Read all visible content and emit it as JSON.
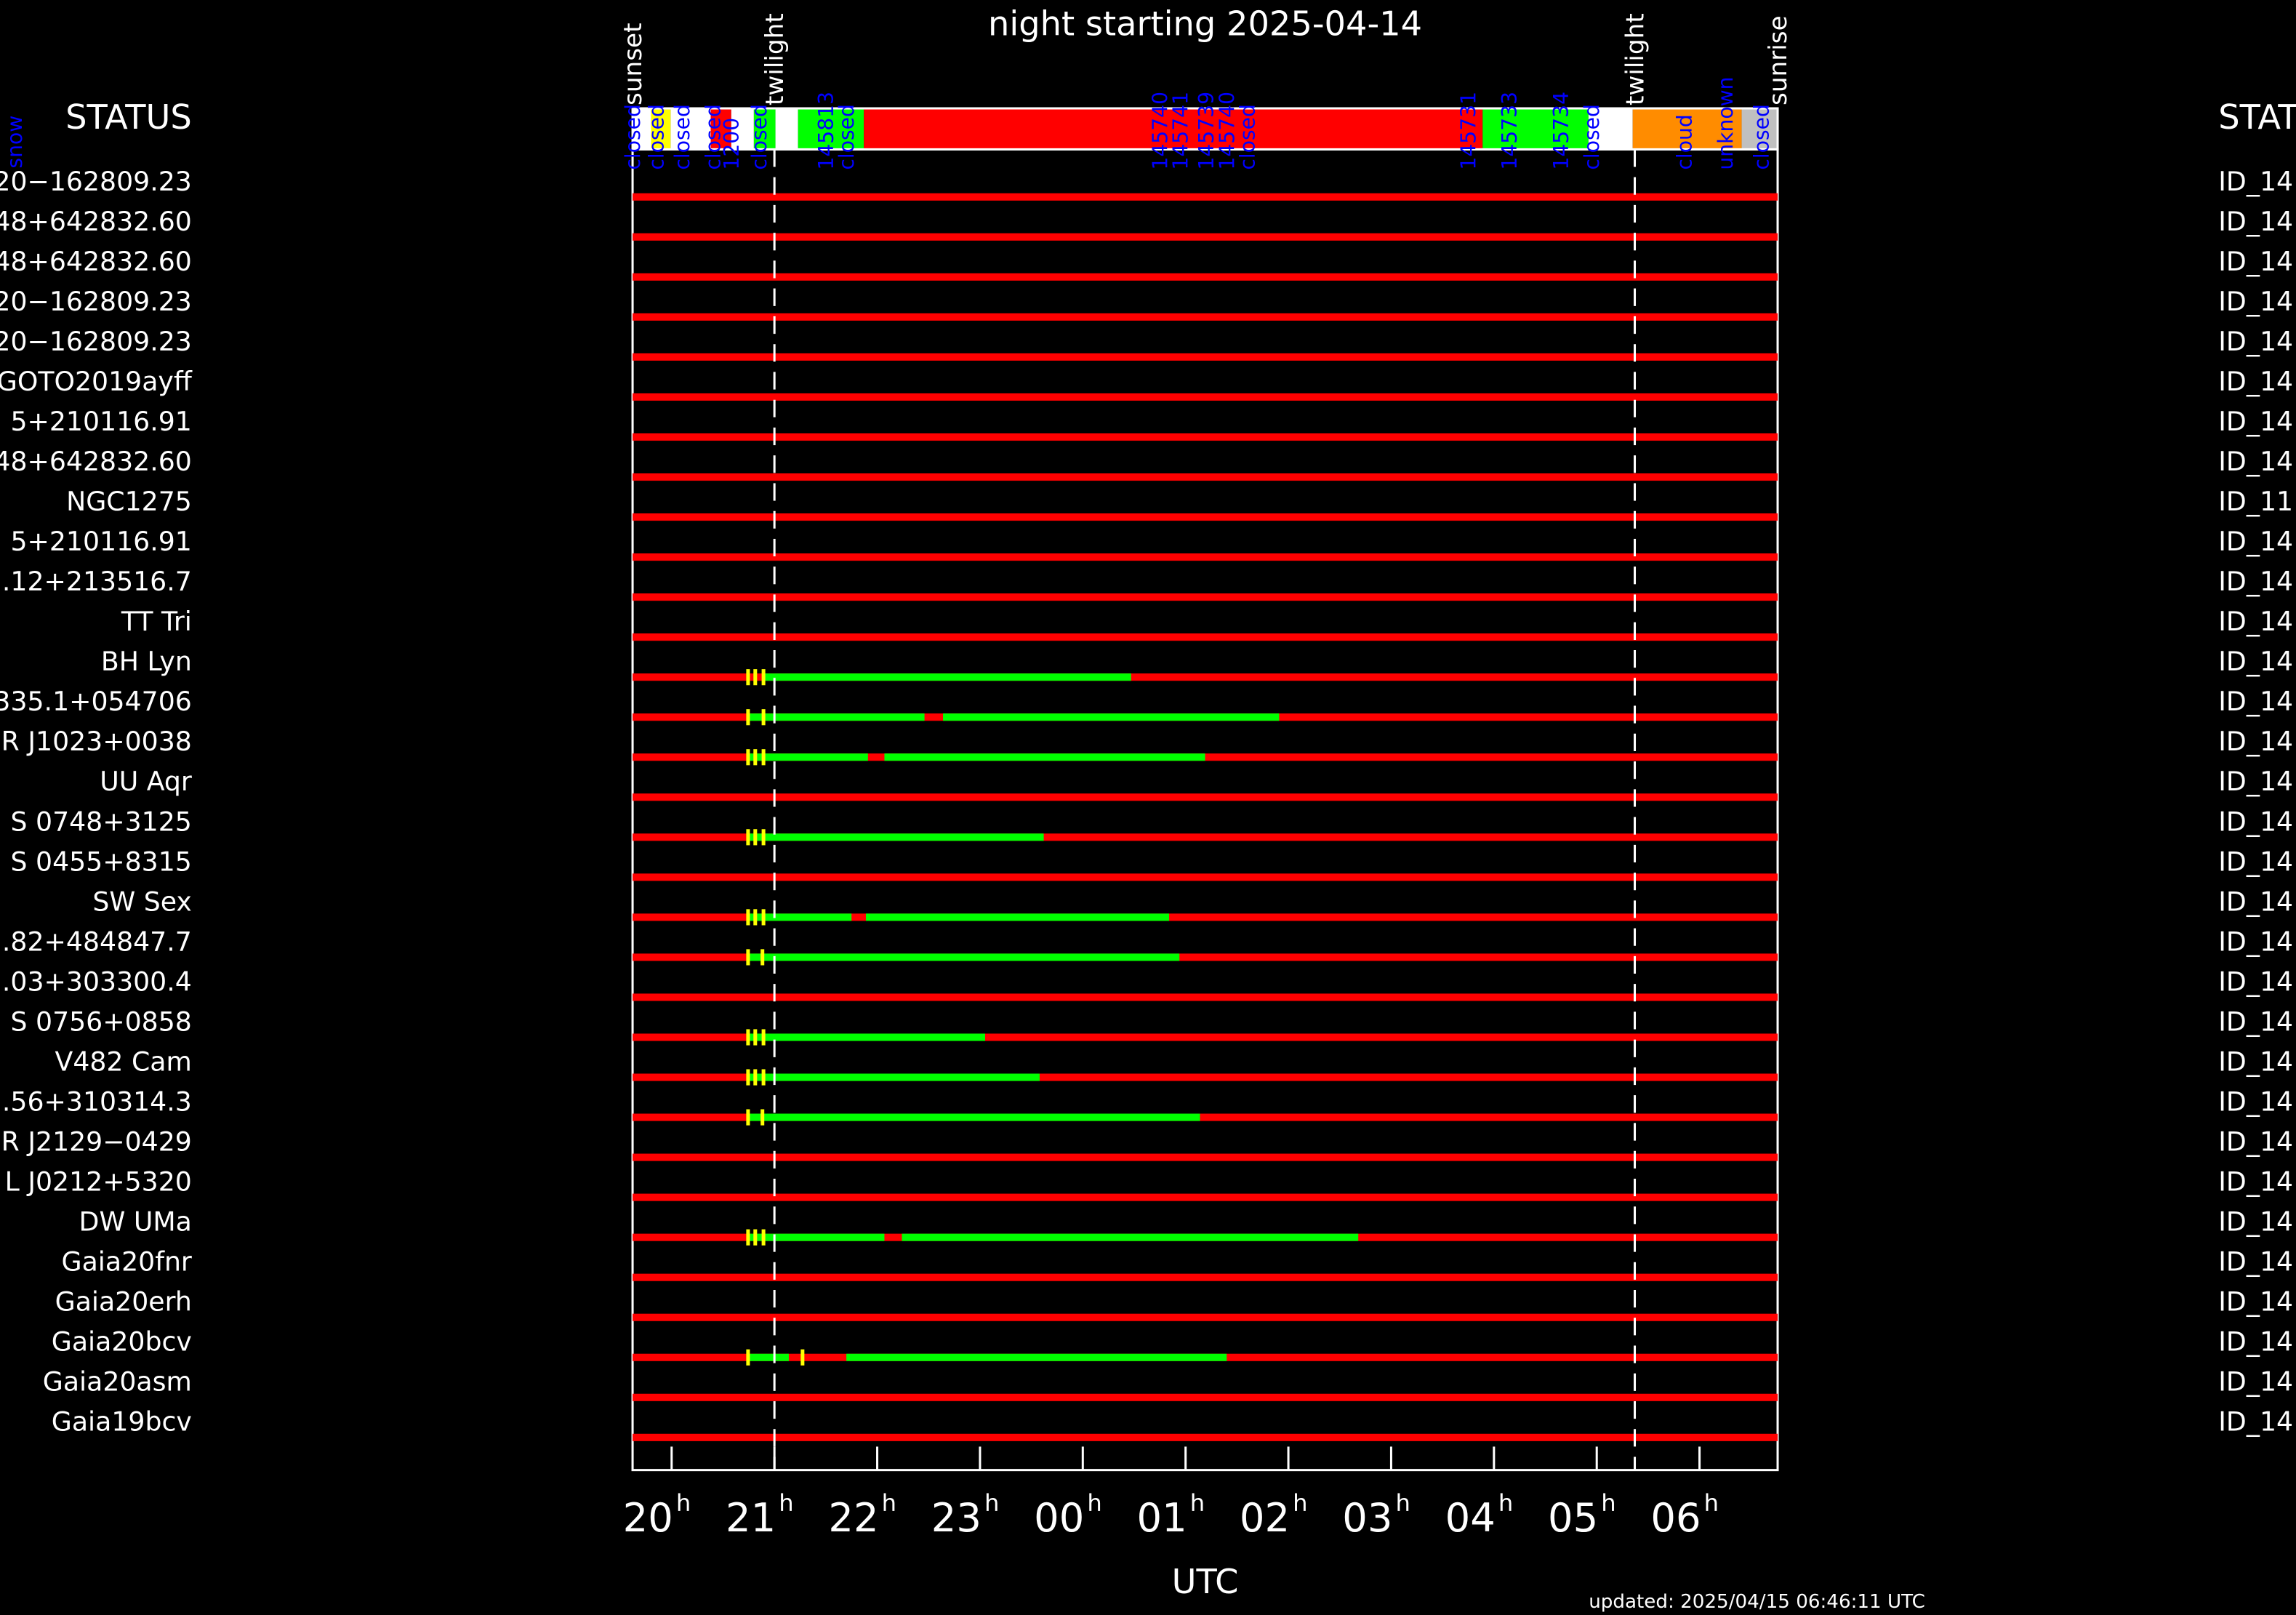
{
  "chart_data": {
    "type": "timeline",
    "title": "night starting 2025-04-14",
    "xlabel": "UTC",
    "updated": "updated: 2025/04/15 06:46:11 UTC",
    "left_header": "STATUS",
    "right_header": "STAT",
    "side_note": "snow",
    "xlim": [
      19.62,
      30.76
    ],
    "xticks": [
      {
        "value": 20,
        "label": "20"
      },
      {
        "value": 21,
        "label": "21"
      },
      {
        "value": 22,
        "label": "22"
      },
      {
        "value": 23,
        "label": "23"
      },
      {
        "value": 24,
        "label": "00"
      },
      {
        "value": 25,
        "label": "01"
      },
      {
        "value": 26,
        "label": "02"
      },
      {
        "value": 27,
        "label": "03"
      },
      {
        "value": 28,
        "label": "04"
      },
      {
        "value": 29,
        "label": "05"
      },
      {
        "value": 30,
        "label": "06"
      }
    ],
    "xtick_unit": "h",
    "base_color": "#ff0000",
    "good_color": "#00ff00",
    "mark_color": "#ffff00",
    "events": [
      {
        "label": "sunset",
        "at": 19.62,
        "dashed": false
      },
      {
        "label": "twilight",
        "at": 21.0,
        "dashed": true
      },
      {
        "label": "twilight",
        "at": 29.37,
        "dashed": true
      },
      {
        "label": "sunrise",
        "at": 30.76,
        "dashed": false
      }
    ],
    "status": [
      {
        "start": 19.62,
        "end": 19.8,
        "color": "#ffffff"
      },
      {
        "start": 19.8,
        "end": 19.99,
        "color": "#ffff00"
      },
      {
        "start": 19.99,
        "end": 20.38,
        "color": "#ffffff"
      },
      {
        "start": 20.38,
        "end": 20.58,
        "color": "#ff0000"
      },
      {
        "start": 20.58,
        "end": 20.8,
        "color": "#ffffff"
      },
      {
        "start": 20.8,
        "end": 21.01,
        "color": "#00ff00"
      },
      {
        "start": 21.01,
        "end": 21.23,
        "color": "#ffffff"
      },
      {
        "start": 21.23,
        "end": 21.87,
        "color": "#00ff00"
      },
      {
        "start": 21.87,
        "end": 27.89,
        "color": "#ff0000"
      },
      {
        "start": 27.89,
        "end": 28.92,
        "color": "#00ff00"
      },
      {
        "start": 28.92,
        "end": 29.35,
        "color": "#ffffff"
      },
      {
        "start": 29.35,
        "end": 30.41,
        "color": "#ff8c00"
      },
      {
        "start": 30.41,
        "end": 30.76,
        "color": "#c0c0c0"
      }
    ],
    "status_labels": [
      {
        "at": 19.62,
        "text": "closed"
      },
      {
        "at": 19.85,
        "text": "closed"
      },
      {
        "at": 20.1,
        "text": "closed"
      },
      {
        "at": 20.4,
        "text": "closed"
      },
      {
        "at": 20.58,
        "text": "1200"
      },
      {
        "at": 20.85,
        "text": "closed"
      },
      {
        "at": 21.5,
        "text": "145813"
      },
      {
        "at": 21.7,
        "text": "closed"
      },
      {
        "at": 24.75,
        "text": "145740"
      },
      {
        "at": 24.95,
        "text": "145741"
      },
      {
        "at": 25.2,
        "text": "145739"
      },
      {
        "at": 25.4,
        "text": "145740"
      },
      {
        "at": 25.6,
        "text": "closed"
      },
      {
        "at": 27.75,
        "text": "145731"
      },
      {
        "at": 28.15,
        "text": "145733"
      },
      {
        "at": 28.65,
        "text": "145734"
      },
      {
        "at": 28.95,
        "text": "closed"
      },
      {
        "at": 29.85,
        "text": "cloud"
      },
      {
        "at": 30.25,
        "text": "unknown"
      },
      {
        "at": 30.6,
        "text": "closed"
      }
    ],
    "rows": [
      {
        "label": "20−162809.23",
        "id": "ID_14",
        "good": [],
        "marks": []
      },
      {
        "label": "48+642832.60",
        "id": "ID_14",
        "good": [],
        "marks": []
      },
      {
        "label": "48+642832.60",
        "id": "ID_14",
        "good": [],
        "marks": []
      },
      {
        "label": "20−162809.23",
        "id": "ID_14",
        "good": [],
        "marks": []
      },
      {
        "label": "20−162809.23",
        "id": "ID_14",
        "good": [],
        "marks": []
      },
      {
        "label": "GOTO2019ayff",
        "id": "ID_14",
        "good": [],
        "marks": []
      },
      {
        "label": "5+210116.91",
        "id": "ID_14",
        "good": [],
        "marks": []
      },
      {
        "label": "48+642832.60",
        "id": "ID_14",
        "good": [],
        "marks": []
      },
      {
        "label": "NGC1275",
        "id": "ID_11",
        "good": [],
        "marks": []
      },
      {
        "label": "5+210116.91",
        "id": "ID_14",
        "good": [],
        "marks": []
      },
      {
        "label": ".12+213516.7",
        "id": "ID_14",
        "good": [],
        "marks": []
      },
      {
        "label": "TT Tri",
        "id": "ID_14",
        "good": [],
        "marks": []
      },
      {
        "label": "BH Lyn",
        "id": "ID_14",
        "good": [
          [
            20.9,
            24.47
          ]
        ],
        "marks": [
          20.74,
          20.81,
          20.89
        ]
      },
      {
        "label": "335.1+054706",
        "id": "ID_14",
        "good": [
          [
            20.75,
            22.46
          ],
          [
            22.64,
            25.91
          ]
        ],
        "marks": [
          20.74,
          20.89
        ]
      },
      {
        "label": "R J1023+0038",
        "id": "ID_14",
        "good": [
          [
            20.75,
            21.91
          ],
          [
            22.07,
            25.19
          ]
        ],
        "marks": [
          20.74,
          20.81,
          20.89
        ]
      },
      {
        "label": "UU Aqr",
        "id": "ID_14",
        "good": [],
        "marks": []
      },
      {
        "label": "S 0748+3125",
        "id": "ID_14",
        "good": [
          [
            20.75,
            23.62
          ]
        ],
        "marks": [
          20.74,
          20.81,
          20.89
        ]
      },
      {
        "label": "S 0455+8315",
        "id": "ID_14",
        "good": [],
        "marks": []
      },
      {
        "label": "SW Sex",
        "id": "ID_14",
        "good": [
          [
            20.75,
            21.75
          ],
          [
            21.89,
            24.84
          ]
        ],
        "marks": [
          20.74,
          20.81,
          20.89
        ]
      },
      {
        "label": ".82+484847.7",
        "id": "ID_14",
        "good": [
          [
            20.75,
            24.94
          ]
        ],
        "marks": [
          20.74,
          20.88
        ]
      },
      {
        "label": ".03+303300.4",
        "id": "ID_14",
        "good": [],
        "marks": []
      },
      {
        "label": "S 0756+0858",
        "id": "ID_14",
        "good": [
          [
            20.75,
            23.05
          ]
        ],
        "marks": [
          20.74,
          20.81,
          20.89
        ]
      },
      {
        "label": "V482 Cam",
        "id": "ID_14",
        "good": [
          [
            20.75,
            23.58
          ]
        ],
        "marks": [
          20.74,
          20.81,
          20.89
        ]
      },
      {
        "label": ".56+310314.3",
        "id": "ID_14",
        "good": [
          [
            20.75,
            25.14
          ]
        ],
        "marks": [
          20.74,
          20.88
        ]
      },
      {
        "label": "R J2129−0429",
        "id": "ID_14",
        "good": [],
        "marks": []
      },
      {
        "label": "L J0212+5320",
        "id": "ID_14",
        "good": [],
        "marks": []
      },
      {
        "label": "DW UMa",
        "id": "ID_14",
        "good": [
          [
            20.75,
            22.07
          ],
          [
            22.24,
            26.68
          ]
        ],
        "marks": [
          20.74,
          20.81,
          20.89
        ]
      },
      {
        "label": "Gaia20fnr",
        "id": "ID_14",
        "good": [],
        "marks": []
      },
      {
        "label": "Gaia20erh",
        "id": "ID_14",
        "good": [],
        "marks": []
      },
      {
        "label": "Gaia20bcv",
        "id": "ID_14",
        "good": [
          [
            20.75,
            21.14
          ],
          [
            21.7,
            25.4
          ]
        ],
        "marks": [
          20.74,
          21.27
        ]
      },
      {
        "label": "Gaia20asm",
        "id": "ID_14",
        "good": [],
        "marks": []
      },
      {
        "label": "Gaia19bcv",
        "id": "ID_14",
        "good": [],
        "marks": []
      }
    ]
  }
}
